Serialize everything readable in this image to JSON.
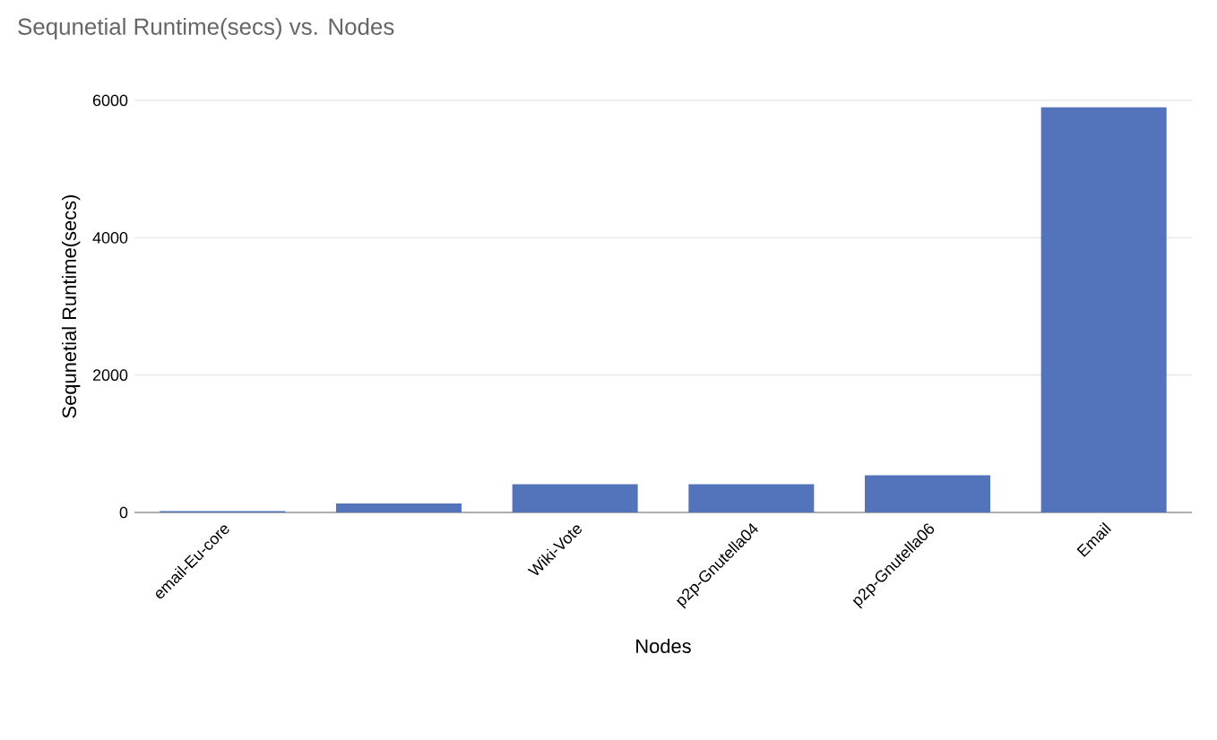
{
  "chart_data": {
    "type": "bar",
    "title": "Sequnetial Runtime(secs) vs. Nodes",
    "xlabel": "Nodes",
    "ylabel": "Sequnetial Runtime(secs)",
    "categories": [
      "email-Eu-core",
      null,
      "Wiki-Vote",
      "p2p-Gnutella04",
      "p2p-Gnutella06",
      "Email"
    ],
    "values": [
      20,
      130,
      410,
      410,
      540,
      5900
    ],
    "color": "#5374bb",
    "ylim": [
      0,
      6000
    ],
    "yticks": [
      0,
      2000,
      4000,
      6000
    ],
    "grid": "y"
  }
}
